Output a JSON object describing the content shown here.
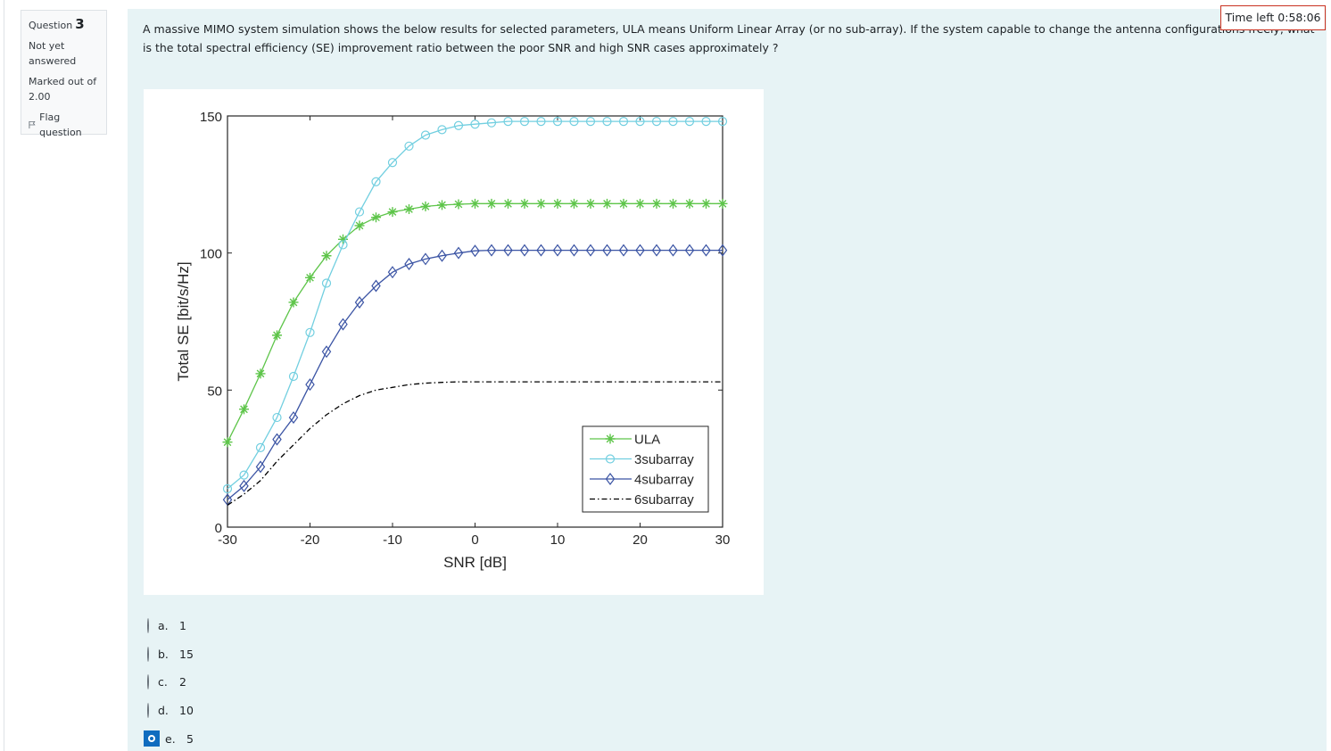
{
  "question_info": {
    "label": "Question",
    "number": "3",
    "state": "Not yet answered",
    "grade": "Marked out of 2.00",
    "flag_label": "Flag question"
  },
  "timer": {
    "text": "Time left 0:58:06"
  },
  "question_text": "A massive MIMO system simulation shows the below results for selected parameters, ULA means Uniform Linear Array (or no sub-array). If the system capable to change the antenna configurations freely, what is the total spectral efficiency (SE) improvement ratio between the poor SNR and high SNR cases approximately ?",
  "answers": [
    {
      "letter": "a.",
      "text": "1",
      "selected": false
    },
    {
      "letter": "b.",
      "text": "15",
      "selected": false
    },
    {
      "letter": "c.",
      "text": "2",
      "selected": false
    },
    {
      "letter": "d.",
      "text": "10",
      "selected": false
    },
    {
      "letter": "e.",
      "text": "5",
      "selected": true
    }
  ],
  "colors": {
    "accent": "#0f6cbf",
    "timer_border": "#ca3120",
    "content_bg": "#e7f3f5"
  },
  "chart_data": {
    "type": "line",
    "title": "",
    "xlabel": "SNR [dB]",
    "ylabel": "Total SE [bit/s/Hz]",
    "xlim": [
      -30,
      30
    ],
    "ylim": [
      0,
      150
    ],
    "xticks": [
      "-30",
      "-20",
      "-10",
      "0",
      "10",
      "20",
      "30"
    ],
    "yticks": [
      "0",
      "50",
      "100",
      "150"
    ],
    "grid": false,
    "legend_position": "bottom-right",
    "x": [
      -30,
      -28,
      -26,
      -24,
      -22,
      -20,
      -18,
      -16,
      -14,
      -12,
      -10,
      -8,
      -6,
      -4,
      -2,
      0,
      2,
      4,
      6,
      8,
      10,
      12,
      14,
      16,
      18,
      20,
      22,
      24,
      26,
      28,
      30
    ],
    "series": [
      {
        "name": "ULA",
        "color": "#5ec54a",
        "marker": "star",
        "dash": "",
        "values": [
          31,
          43,
          56,
          70,
          82,
          91,
          99,
          105,
          110,
          113,
          115,
          116,
          117,
          117.5,
          117.8,
          118,
          118,
          118,
          118,
          118,
          118,
          118,
          118,
          118,
          118,
          118,
          118,
          118,
          118,
          118,
          118
        ]
      },
      {
        "name": "3subarray",
        "color": "#72cfe0",
        "marker": "circle",
        "dash": "",
        "values": [
          14,
          19,
          29,
          40,
          55,
          71,
          89,
          103,
          115,
          126,
          133,
          139,
          143,
          145,
          146.5,
          147,
          147.5,
          148,
          148,
          148,
          148,
          148,
          148,
          148,
          148,
          148,
          148,
          148,
          148,
          148,
          148
        ]
      },
      {
        "name": "4subarray",
        "color": "#3b54a4",
        "marker": "diamond",
        "dash": "",
        "values": [
          10,
          15,
          22,
          32,
          40,
          52,
          64,
          74,
          82,
          88,
          93,
          96,
          97.8,
          99,
          100,
          100.8,
          101,
          101,
          101,
          101,
          101,
          101,
          101,
          101,
          101,
          101,
          101,
          101,
          101,
          101,
          101
        ]
      },
      {
        "name": "6subarray",
        "color": "#000000",
        "marker": "none",
        "dash": "6 3 1.5 3",
        "values": [
          8,
          12,
          17,
          24,
          30,
          36,
          41,
          45,
          48,
          50,
          51,
          52,
          52.5,
          52.8,
          53,
          53,
          53,
          53,
          53,
          53,
          53,
          53,
          53,
          53,
          53,
          53,
          53,
          53,
          53,
          53,
          53
        ]
      }
    ]
  }
}
